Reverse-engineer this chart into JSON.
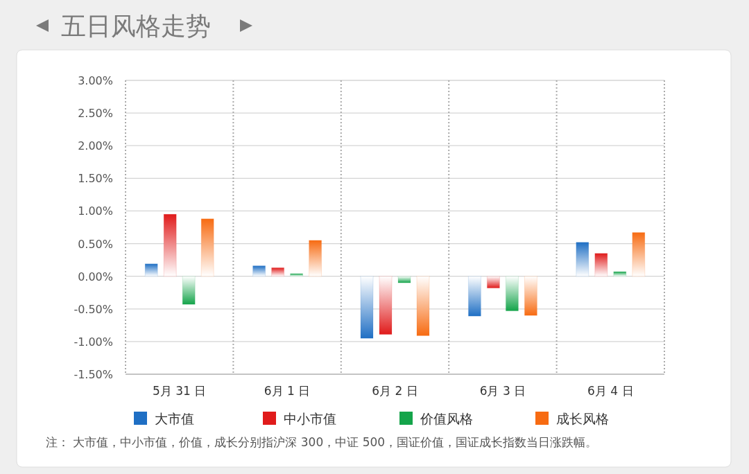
{
  "chart_data": {
    "type": "bar",
    "title": "五日风格走势",
    "categories": [
      "5月 31 日",
      "6月 1 日",
      "6月 2 日",
      "6月 3 日",
      "6月 4 日"
    ],
    "series": [
      {
        "name": "大市值",
        "color": "#1f6fc4",
        "values": [
          0.19,
          0.16,
          -0.95,
          -0.61,
          0.52
        ]
      },
      {
        "name": "中小市值",
        "color": "#e01b1b",
        "values": [
          0.95,
          0.13,
          -0.89,
          -0.18,
          0.35
        ]
      },
      {
        "name": "价值风格",
        "color": "#14a44a",
        "values": [
          -0.43,
          0.04,
          -0.1,
          -0.53,
          0.07
        ]
      },
      {
        "name": "成长风格",
        "color": "#f76b12",
        "values": [
          0.88,
          0.55,
          -0.91,
          -0.6,
          0.67
        ]
      }
    ],
    "ylim": [
      -1.5,
      3.0
    ],
    "yticks": [
      {
        "value": -1.5,
        "label": "-1.50%"
      },
      {
        "value": -1.0,
        "label": "-1.00%"
      },
      {
        "value": -0.5,
        "label": "-0.50%"
      },
      {
        "value": 0,
        "label": "0.00%"
      },
      {
        "value": 0.5,
        "label": "0.50%"
      },
      {
        "value": 1.0,
        "label": "1.00%"
      },
      {
        "value": 1.5,
        "label": "1.50%"
      },
      {
        "value": 2.0,
        "label": "2.00%"
      },
      {
        "value": 2.5,
        "label": "2.50%"
      },
      {
        "value": 3.0,
        "label": "3.00%"
      }
    ],
    "grid": true,
    "legend": "bottom",
    "annotations": [
      "注：  大市值，中小市值，价值，成长分别指沪深 300，中证 500，国证价值，国证成长指数当日涨跌幅。"
    ]
  }
}
